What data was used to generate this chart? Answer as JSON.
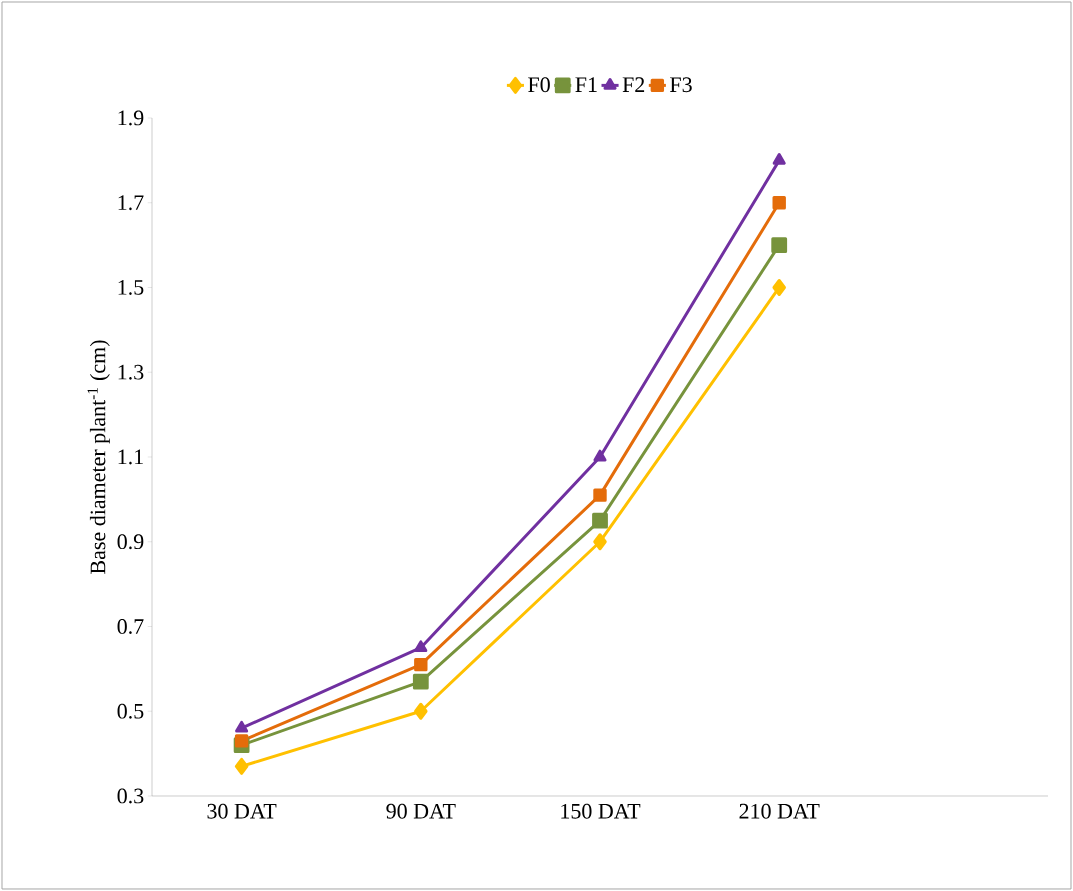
{
  "chart_data": {
    "type": "line",
    "ylabel": "Base diameter plant$^{-1}$ (cm)",
    "categories": [
      "30 DAT",
      "90 DAT",
      "150 DAT",
      "210 DAT",
      null
    ],
    "series": [
      {
        "name": "F0",
        "color": "#ffc000",
        "marker": "diamond",
        "values": [
          0.37,
          0.5,
          0.9,
          1.5,
          null
        ]
      },
      {
        "name": "F1",
        "color": "#77933c",
        "marker": "square",
        "values": [
          0.42,
          0.57,
          0.95,
          1.6,
          null
        ]
      },
      {
        "name": "F2",
        "color": "#7030a0",
        "marker": "triangle",
        "values": [
          0.46,
          0.65,
          1.1,
          1.8,
          null
        ]
      },
      {
        "name": "F3",
        "color": "#e46c0a",
        "marker": "square",
        "values": [
          0.43,
          0.61,
          1.01,
          1.7,
          null
        ]
      }
    ],
    "ylim": [
      0.3,
      1.9
    ],
    "yticks": [
      0.3,
      0.5,
      0.7,
      0.9,
      1.1,
      1.3,
      1.5,
      1.7,
      1.9
    ],
    "grid": false,
    "legend": "top",
    "line_style": "solid"
  }
}
